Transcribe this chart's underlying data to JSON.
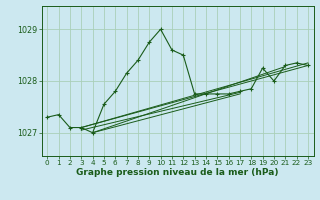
{
  "title": "Graphe pression niveau de la mer (hPa)",
  "background_color": "#cce8f0",
  "grid_color": "#aacfb8",
  "line_color": "#1a5c1a",
  "xlim": [
    -0.5,
    23.5
  ],
  "ylim": [
    1026.55,
    1029.45
  ],
  "yticks": [
    1027,
    1028,
    1029
  ],
  "xticks": [
    0,
    1,
    2,
    3,
    4,
    5,
    6,
    7,
    8,
    9,
    10,
    11,
    12,
    13,
    14,
    15,
    16,
    17,
    18,
    19,
    20,
    21,
    22,
    23
  ],
  "main_x": [
    0,
    1,
    2,
    3,
    4,
    5,
    6,
    7,
    8,
    9,
    10,
    11,
    12,
    13,
    14,
    15,
    16,
    17,
    18,
    19,
    20,
    21,
    22,
    23
  ],
  "main_y": [
    1027.3,
    1027.35,
    1027.1,
    1027.1,
    1027.0,
    1027.55,
    1027.8,
    1028.15,
    1028.4,
    1028.75,
    1029.0,
    1028.6,
    1028.5,
    1027.75,
    1027.75,
    1027.75,
    1027.75,
    1027.8,
    1027.85,
    1028.25,
    1028.0,
    1028.3,
    1028.35,
    1028.3
  ],
  "trend_lines": [
    {
      "x0": 3,
      "y0": 1027.1,
      "x1": 23,
      "y1": 1028.35
    },
    {
      "x0": 3,
      "y0": 1027.1,
      "x1": 23,
      "y1": 1028.3
    },
    {
      "x0": 3,
      "y0": 1027.05,
      "x1": 17,
      "y1": 1027.78
    },
    {
      "x0": 4,
      "y0": 1027.0,
      "x1": 17,
      "y1": 1027.75
    },
    {
      "x0": 4,
      "y0": 1027.0,
      "x1": 21,
      "y1": 1028.28
    }
  ],
  "label_fontsize": 6.5,
  "tick_fontsize": 5.2,
  "ytick_fontsize": 5.8
}
